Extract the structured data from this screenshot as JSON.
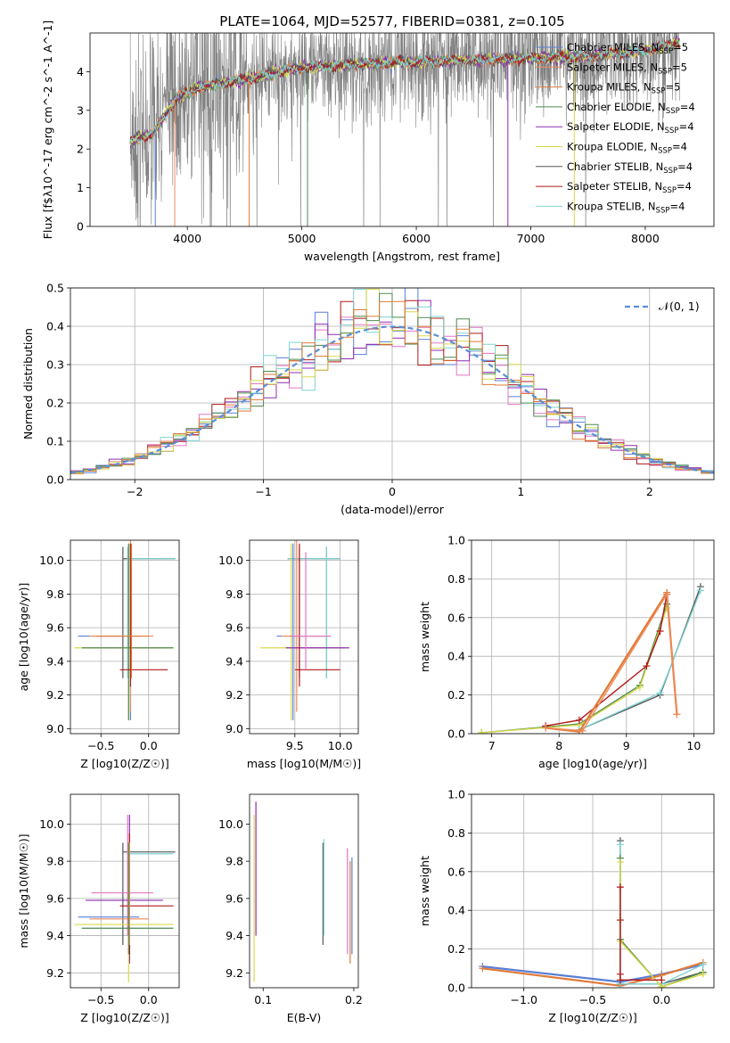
{
  "title": "PLATE=1064, MJD=52577, FIBERID=0381, z=0.105",
  "models": [
    {
      "name": "Chabrier MILES, N$SSP=5",
      "short": "Chabrier MILES",
      "color": "#5b7fd6"
    },
    {
      "name": "Salpeter MILES, N$SSP=5",
      "short": "Salpeter MILES",
      "color": "#f08a5a"
    },
    {
      "name": "Kroupa MILES, N$SSP=5",
      "short": "Kroupa MILES",
      "color": "#e07b39"
    },
    {
      "name": "Chabrier ELODIE, N$SSP=4",
      "short": "Chabrier ELODIE",
      "color": "#4f8a52"
    },
    {
      "name": "Salpeter ELODIE, N$SSP=4",
      "short": "Salpeter ELODIE",
      "color": "#8e2bb0"
    },
    {
      "name": "Kroupa ELODIE, N$SSP=4",
      "short": "Kroupa ELODIE",
      "color": "#d7d94a"
    },
    {
      "name": "Chabrier STELIB, N$SSP=4",
      "short": "Chabrier STELIB",
      "color": "#555555"
    },
    {
      "name": "Salpeter STELIB, N$SSP=4",
      "short": "Salpeter STELIB",
      "color": "#b01818"
    },
    {
      "name": "Kroupa STELIB, N$SSP=4",
      "short": "Kroupa STELIB",
      "color": "#7fd3d3"
    }
  ],
  "legend_sub": "SSP",
  "chart_data": [
    {
      "id": "spectrum",
      "type": "line",
      "xlabel": "wavelength [Angstrom, rest frame]",
      "ylabel": "Flux [f$λ10^-17 erg cm^-2 s^-1 A^-1]",
      "xlim": [
        3150,
        8600
      ],
      "ylim": [
        0,
        5
      ],
      "xticks": [
        4000,
        5000,
        6000,
        7000,
        8000
      ],
      "yticks": [
        0,
        1,
        2,
        3,
        4
      ],
      "grid": false,
      "legend": "right",
      "continuum": [
        [
          3500,
          2.2
        ],
        [
          3700,
          2.4
        ],
        [
          3900,
          3.3
        ],
        [
          4100,
          3.6
        ],
        [
          4300,
          3.7
        ],
        [
          4500,
          3.8
        ],
        [
          4800,
          4.0
        ],
        [
          5000,
          4.1
        ],
        [
          5500,
          4.2
        ],
        [
          6000,
          4.25
        ],
        [
          6500,
          4.3
        ],
        [
          7000,
          4.35
        ],
        [
          7500,
          4.4
        ],
        [
          8000,
          4.55
        ],
        [
          8300,
          4.75
        ]
      ],
      "data_noise_amplitude": 1.2
    },
    {
      "id": "residuals",
      "type": "histogram",
      "xlabel": "(data-model)/error",
      "ylabel": "Normed distribution",
      "xlim": [
        -2.5,
        2.5
      ],
      "ylim": [
        0,
        0.5
      ],
      "xticks": [
        -2,
        -1,
        0,
        1,
        2
      ],
      "yticks": [
        0.0,
        0.1,
        0.2,
        0.3,
        0.4,
        0.5
      ],
      "grid": true,
      "reference": {
        "label": "𝒩(0, 1)",
        "color": "#5b8fd6"
      },
      "bin_width": 0.1,
      "series_colors": [
        "#5b7fd6",
        "#e377c2",
        "#8e2bb0",
        "#b01818",
        "#7fd3d3",
        "#d7d94a",
        "#4f8a52",
        "#e07b39"
      ]
    },
    {
      "id": "age_vs_Z",
      "type": "errorbar",
      "xlabel": "Z [log10(Z/Z☉)]",
      "ylabel": "age  [log10(age/yr)]",
      "xlim": [
        -0.82,
        0.32
      ],
      "ylim": [
        8.97,
        10.12
      ],
      "xticks": [
        -0.5,
        0.0
      ],
      "yticks": [
        9.0,
        9.2,
        9.4,
        9.6,
        9.8,
        10.0
      ],
      "grid": true,
      "points": [
        {
          "x": -0.27,
          "y": 10.01,
          "xlo": -0.27,
          "xhi": 0.28,
          "ylo": 9.3,
          "yhi": 10.08,
          "c": "#555555"
        },
        {
          "x": -0.22,
          "y": 10.01,
          "xlo": -0.22,
          "xhi": 0.28,
          "ylo": 9.3,
          "yhi": 10.08,
          "c": "#7fd3d3"
        },
        {
          "x": -0.19,
          "y": 9.55,
          "xlo": -0.74,
          "xhi": -0.1,
          "ylo": 9.05,
          "yhi": 10.1,
          "c": "#5b7fd6"
        },
        {
          "x": -0.19,
          "y": 9.55,
          "xlo": -0.62,
          "xhi": 0.05,
          "ylo": 9.1,
          "yhi": 10.12,
          "c": "#f08a5a"
        },
        {
          "x": -0.21,
          "y": 9.48,
          "xlo": -0.78,
          "xhi": 0.26,
          "ylo": 9.05,
          "yhi": 10.1,
          "c": "#d7d94a"
        },
        {
          "x": -0.21,
          "y": 9.48,
          "xlo": -0.7,
          "xhi": 0.26,
          "ylo": 9.05,
          "yhi": 10.1,
          "c": "#4f8a52"
        },
        {
          "x": -0.19,
          "y": 9.35,
          "xlo": -0.3,
          "xhi": 0.2,
          "ylo": 9.25,
          "yhi": 10.1,
          "c": "#b01818"
        },
        {
          "x": -0.18,
          "y": 9.55,
          "xlo": -0.55,
          "xhi": 0.0,
          "ylo": 9.3,
          "yhi": 10.1,
          "c": "#e07b39"
        }
      ]
    },
    {
      "id": "age_vs_mass",
      "type": "errorbar",
      "xlabel": "mass [log10(M/M☉)]",
      "ylabel": "",
      "xlim": [
        9.0,
        10.2
      ],
      "ylim": [
        8.97,
        10.12
      ],
      "xticks": [
        9.5,
        10.0
      ],
      "yticks": [
        9.0,
        9.2,
        9.4,
        9.6,
        9.8,
        10.0
      ],
      "grid": true,
      "points": [
        {
          "x": 9.85,
          "y": 10.01,
          "xlo": 9.42,
          "xhi": 10.0,
          "ylo": 9.3,
          "yhi": 10.08,
          "c": "#555555"
        },
        {
          "x": 9.85,
          "y": 10.01,
          "xlo": 9.42,
          "xhi": 10.0,
          "ylo": 9.3,
          "yhi": 10.08,
          "c": "#7fd3d3"
        },
        {
          "x": 9.48,
          "y": 9.55,
          "xlo": 9.3,
          "xhi": 9.9,
          "ylo": 9.05,
          "yhi": 10.1,
          "c": "#5b7fd6"
        },
        {
          "x": 9.52,
          "y": 9.55,
          "xlo": 9.35,
          "xhi": 9.85,
          "ylo": 9.1,
          "yhi": 10.12,
          "c": "#f08a5a"
        },
        {
          "x": 9.46,
          "y": 9.48,
          "xlo": 9.12,
          "xhi": 10.05,
          "ylo": 9.05,
          "yhi": 10.1,
          "c": "#d7d94a"
        },
        {
          "x": 9.55,
          "y": 9.48,
          "xlo": 9.4,
          "xhi": 10.1,
          "ylo": 9.3,
          "yhi": 10.08,
          "c": "#8e2bb0"
        },
        {
          "x": 9.55,
          "y": 9.35,
          "xlo": 9.5,
          "xhi": 10.0,
          "ylo": 9.25,
          "yhi": 10.1,
          "c": "#b01818"
        },
        {
          "x": 9.62,
          "y": 9.55,
          "xlo": 9.45,
          "xhi": 9.9,
          "ylo": 9.35,
          "yhi": 10.05,
          "c": "#e377c2"
        }
      ]
    },
    {
      "id": "massweight_vs_age",
      "type": "line",
      "xlabel": "age  [log10(age/yr)]",
      "ylabel": "mass weight",
      "xlim": [
        6.7,
        10.3
      ],
      "ylim": [
        0,
        1.0
      ],
      "xticks": [
        7,
        8,
        9,
        10
      ],
      "yticks": [
        0.0,
        0.2,
        0.4,
        0.6,
        0.8,
        1.0
      ],
      "grid": true,
      "series": [
        {
          "c": "#4f8a52",
          "x": [
            6.85,
            8.3,
            9.2,
            9.6
          ],
          "y": [
            0.005,
            0.05,
            0.25,
            0.67
          ]
        },
        {
          "c": "#d7d94a",
          "x": [
            6.85,
            8.3,
            9.2,
            9.6
          ],
          "y": [
            0.005,
            0.045,
            0.24,
            0.65
          ]
        },
        {
          "c": "#b01818",
          "x": [
            7.8,
            8.3,
            9.3,
            9.5,
            9.6
          ],
          "y": [
            0.04,
            0.07,
            0.35,
            0.53,
            0.72
          ]
        },
        {
          "c": "#555555",
          "x": [
            8.3,
            9.5,
            10.1
          ],
          "y": [
            0.02,
            0.2,
            0.76
          ]
        },
        {
          "c": "#7fd3d3",
          "x": [
            8.3,
            9.5,
            10.1
          ],
          "y": [
            0.02,
            0.21,
            0.74
          ]
        },
        {
          "c": "#e07b39",
          "x": [
            7.8,
            8.3,
            9.6,
            9.75
          ],
          "y": [
            0.03,
            0.01,
            0.73,
            0.1
          ]
        },
        {
          "c": "#f08a5a",
          "x": [
            7.8,
            8.35,
            9.6,
            9.75
          ],
          "y": [
            0.03,
            0.015,
            0.72,
            0.1
          ]
        }
      ]
    },
    {
      "id": "mass_vs_Z",
      "type": "errorbar",
      "xlabel": "Z [log10(Z/Z☉)]",
      "ylabel": "mass [log10(M/M☉)]",
      "xlim": [
        -0.82,
        0.32
      ],
      "ylim": [
        9.12,
        10.16
      ],
      "xticks": [
        -0.5,
        0.0
      ],
      "yticks": [
        9.2,
        9.4,
        9.6,
        9.8,
        10.0
      ],
      "grid": true,
      "points": [
        {
          "x": -0.27,
          "y": 9.85,
          "xlo": -0.27,
          "xhi": 0.28,
          "ylo": 9.35,
          "yhi": 9.9,
          "c": "#555555"
        },
        {
          "x": -0.22,
          "y": 9.84,
          "xlo": -0.22,
          "xhi": 0.26,
          "ylo": 9.42,
          "yhi": 9.9,
          "c": "#7fd3d3"
        },
        {
          "x": -0.22,
          "y": 9.63,
          "xlo": -0.6,
          "xhi": 0.05,
          "ylo": 9.4,
          "yhi": 10.05,
          "c": "#e377c2"
        },
        {
          "x": -0.2,
          "y": 9.59,
          "xlo": -0.66,
          "xhi": 0.15,
          "ylo": 9.25,
          "yhi": 10.05,
          "c": "#8e2bb0"
        },
        {
          "x": -0.2,
          "y": 9.56,
          "xlo": -0.3,
          "xhi": 0.26,
          "ylo": 9.3,
          "yhi": 9.95,
          "c": "#b01818"
        },
        {
          "x": -0.2,
          "y": 9.5,
          "xlo": -0.74,
          "xhi": -0.1,
          "ylo": 9.35,
          "yhi": 9.9,
          "c": "#5b7fd6"
        },
        {
          "x": -0.2,
          "y": 9.49,
          "xlo": -0.62,
          "xhi": 0.0,
          "ylo": 9.35,
          "yhi": 9.9,
          "c": "#f08a5a"
        },
        {
          "x": -0.21,
          "y": 9.46,
          "xlo": -0.78,
          "xhi": 0.26,
          "ylo": 9.15,
          "yhi": 9.9,
          "c": "#d7d94a"
        },
        {
          "x": -0.21,
          "y": 9.44,
          "xlo": -0.7,
          "xhi": 0.26,
          "ylo": 9.3,
          "yhi": 9.9,
          "c": "#4f8a52"
        }
      ]
    },
    {
      "id": "mass_vs_ebv",
      "type": "errorbar",
      "xlabel": "E(B-V)",
      "ylabel": "",
      "xlim": [
        0.085,
        0.205
      ],
      "ylim": [
        9.12,
        10.16
      ],
      "xticks": [
        0.1,
        0.2
      ],
      "yticks": [
        9.2,
        9.4,
        9.6,
        9.8,
        10.0
      ],
      "grid": false,
      "points": [
        {
          "x": 0.092,
          "y": 9.6,
          "xlo": 0.092,
          "xhi": 0.092,
          "ylo": 9.4,
          "yhi": 10.12,
          "c": "#8e2bb0"
        },
        {
          "x": 0.09,
          "y": 9.55,
          "xlo": 0.09,
          "xhi": 0.09,
          "ylo": 9.15,
          "yhi": 10.05,
          "c": "#d7d94a"
        },
        {
          "x": 0.166,
          "y": 9.6,
          "xlo": 0.166,
          "xhi": 0.166,
          "ylo": 9.35,
          "yhi": 9.9,
          "c": "#555555"
        },
        {
          "x": 0.167,
          "y": 9.6,
          "xlo": 0.167,
          "xhi": 0.167,
          "ylo": 9.4,
          "yhi": 9.92,
          "c": "#7fd3d3"
        },
        {
          "x": 0.193,
          "y": 9.55,
          "xlo": 0.193,
          "xhi": 0.193,
          "ylo": 9.3,
          "yhi": 9.87,
          "c": "#e377c2"
        },
        {
          "x": 0.196,
          "y": 9.5,
          "xlo": 0.196,
          "xhi": 0.196,
          "ylo": 9.25,
          "yhi": 9.8,
          "c": "#e07b39"
        },
        {
          "x": 0.198,
          "y": 9.55,
          "xlo": 0.198,
          "xhi": 0.198,
          "ylo": 9.3,
          "yhi": 9.82,
          "c": "#5b7fd6"
        }
      ]
    },
    {
      "id": "massweight_vs_Z",
      "type": "line",
      "xlabel": "Z [log10(Z/Z☉)]",
      "ylabel": "mass weight",
      "xlim": [
        -1.38,
        0.38
      ],
      "ylim": [
        0,
        1.0
      ],
      "xticks": [
        -1.0,
        -0.5,
        0.0
      ],
      "yticks": [
        0.0,
        0.2,
        0.4,
        0.6,
        0.8,
        1.0
      ],
      "grid": true,
      "series": [
        {
          "c": "#5b7fd6",
          "x": [
            -1.3,
            -0.3,
            0.0,
            0.3
          ],
          "y": [
            0.11,
            0.03,
            0.07,
            0.12
          ]
        },
        {
          "c": "#e07b39",
          "x": [
            -1.3,
            -0.3,
            0.0,
            0.3
          ],
          "y": [
            0.1,
            0.01,
            0.065,
            0.13
          ]
        },
        {
          "c": "#555555",
          "x": [
            -0.3,
            -0.3,
            0.0,
            0.3
          ],
          "y": [
            0.76,
            0.02,
            0.02,
            0.08
          ]
        },
        {
          "c": "#7fd3d3",
          "x": [
            -0.3,
            -0.3,
            0.0,
            0.3
          ],
          "y": [
            0.74,
            0.02,
            0.02,
            0.12
          ]
        },
        {
          "c": "#4f8a52",
          "x": [
            -0.3,
            -0.3,
            0.0,
            0.3
          ],
          "y": [
            0.67,
            0.25,
            0.005,
            0.08
          ]
        },
        {
          "c": "#d7d94a",
          "x": [
            -0.3,
            -0.3,
            0.0,
            0.3
          ],
          "y": [
            0.65,
            0.24,
            0.005,
            0.07
          ]
        },
        {
          "c": "#b01818",
          "x": [
            -0.3,
            -0.3,
            -0.3,
            -0.3,
            0.0
          ],
          "y": [
            0.52,
            0.35,
            0.07,
            0.04,
            0.04
          ]
        }
      ]
    }
  ]
}
